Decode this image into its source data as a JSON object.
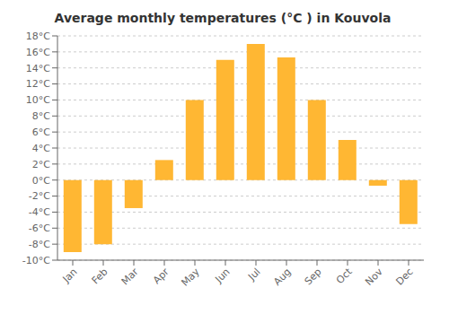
{
  "chart_data": {
    "type": "bar",
    "title": "Average monthly temperatures (°C ) in Kouvola",
    "categories": [
      "Jan",
      "Feb",
      "Mar",
      "Apr",
      "May",
      "Jun",
      "Jul",
      "Aug",
      "Sep",
      "Oct",
      "Nov",
      "Dec"
    ],
    "values": [
      -9.0,
      -8.0,
      -3.5,
      2.5,
      10.0,
      15.0,
      17.0,
      15.3,
      10.0,
      5.0,
      -0.7,
      -5.5
    ],
    "color": "#FFB733",
    "ylim": [
      -10,
      18
    ],
    "yticks": [
      {
        "value": -10,
        "label": "-10°C"
      },
      {
        "value": -8,
        "label": "-8°C"
      },
      {
        "value": -6,
        "label": "-6°C"
      },
      {
        "value": -4,
        "label": "-4°C"
      },
      {
        "value": -2,
        "label": "-2°C"
      },
      {
        "value": 0,
        "label": "0°C"
      },
      {
        "value": 2,
        "label": "2°C"
      },
      {
        "value": 4,
        "label": "4°C"
      },
      {
        "value": 6,
        "label": "6°C"
      },
      {
        "value": 8,
        "label": "8°C"
      },
      {
        "value": 10,
        "label": "10°C"
      },
      {
        "value": 12,
        "label": "12°C"
      },
      {
        "value": 14,
        "label": "14°C"
      },
      {
        "value": 16,
        "label": "16°C"
      },
      {
        "value": 18,
        "label": "18°C"
      }
    ],
    "grid": true
  }
}
